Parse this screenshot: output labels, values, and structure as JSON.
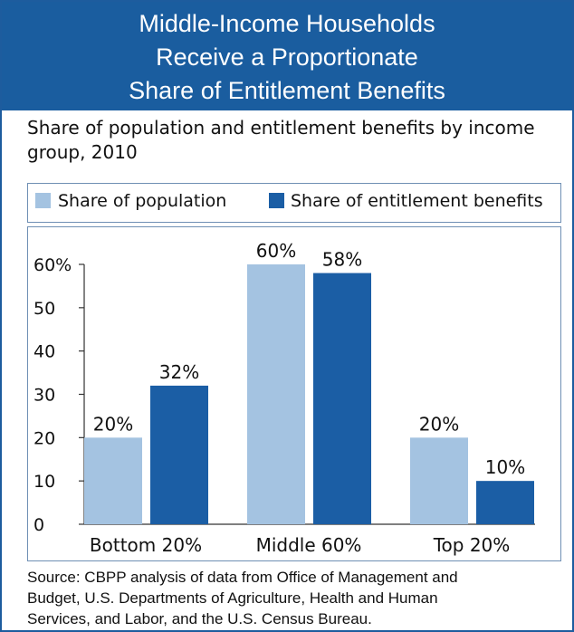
{
  "header": {
    "title_lines": [
      "Middle-Income Households",
      "Receive a Proportionate",
      "Share of Entitlement Benefits"
    ]
  },
  "subtitle_lines": [
    "Share of population and entitlement benefits by income",
    "group, 2010"
  ],
  "source_lines": [
    "Source: CBPP analysis of data from Office of Management and",
    "Budget, U.S. Departments of Agriculture, Health and Human",
    "Services, and Labor, and the U.S. Census Bureau."
  ],
  "colors": {
    "title_band": "#1a5d9f",
    "population": "#a4c3e1",
    "benefits": "#1b5ea5"
  },
  "chart_data": {
    "type": "bar",
    "categories": [
      "Bottom 20%",
      "Middle 60%",
      "Top 20%"
    ],
    "series": [
      {
        "name": "Share of population",
        "values": [
          20,
          60,
          20
        ],
        "labels": [
          "20%",
          "60%",
          "20%"
        ],
        "color": "#a4c3e1"
      },
      {
        "name": "Share of entitlement benefits",
        "values": [
          32,
          58,
          10
        ],
        "labels": [
          "32%",
          "58%",
          "10%"
        ],
        "color": "#1b5ea5"
      }
    ],
    "ylim": [
      0,
      60
    ],
    "yticks": [
      0,
      10,
      20,
      30,
      40,
      50,
      60
    ],
    "ytick_labels": [
      "0",
      "10",
      "20",
      "30",
      "40",
      "50",
      "60%"
    ],
    "legend_position": "top",
    "grid": false
  }
}
